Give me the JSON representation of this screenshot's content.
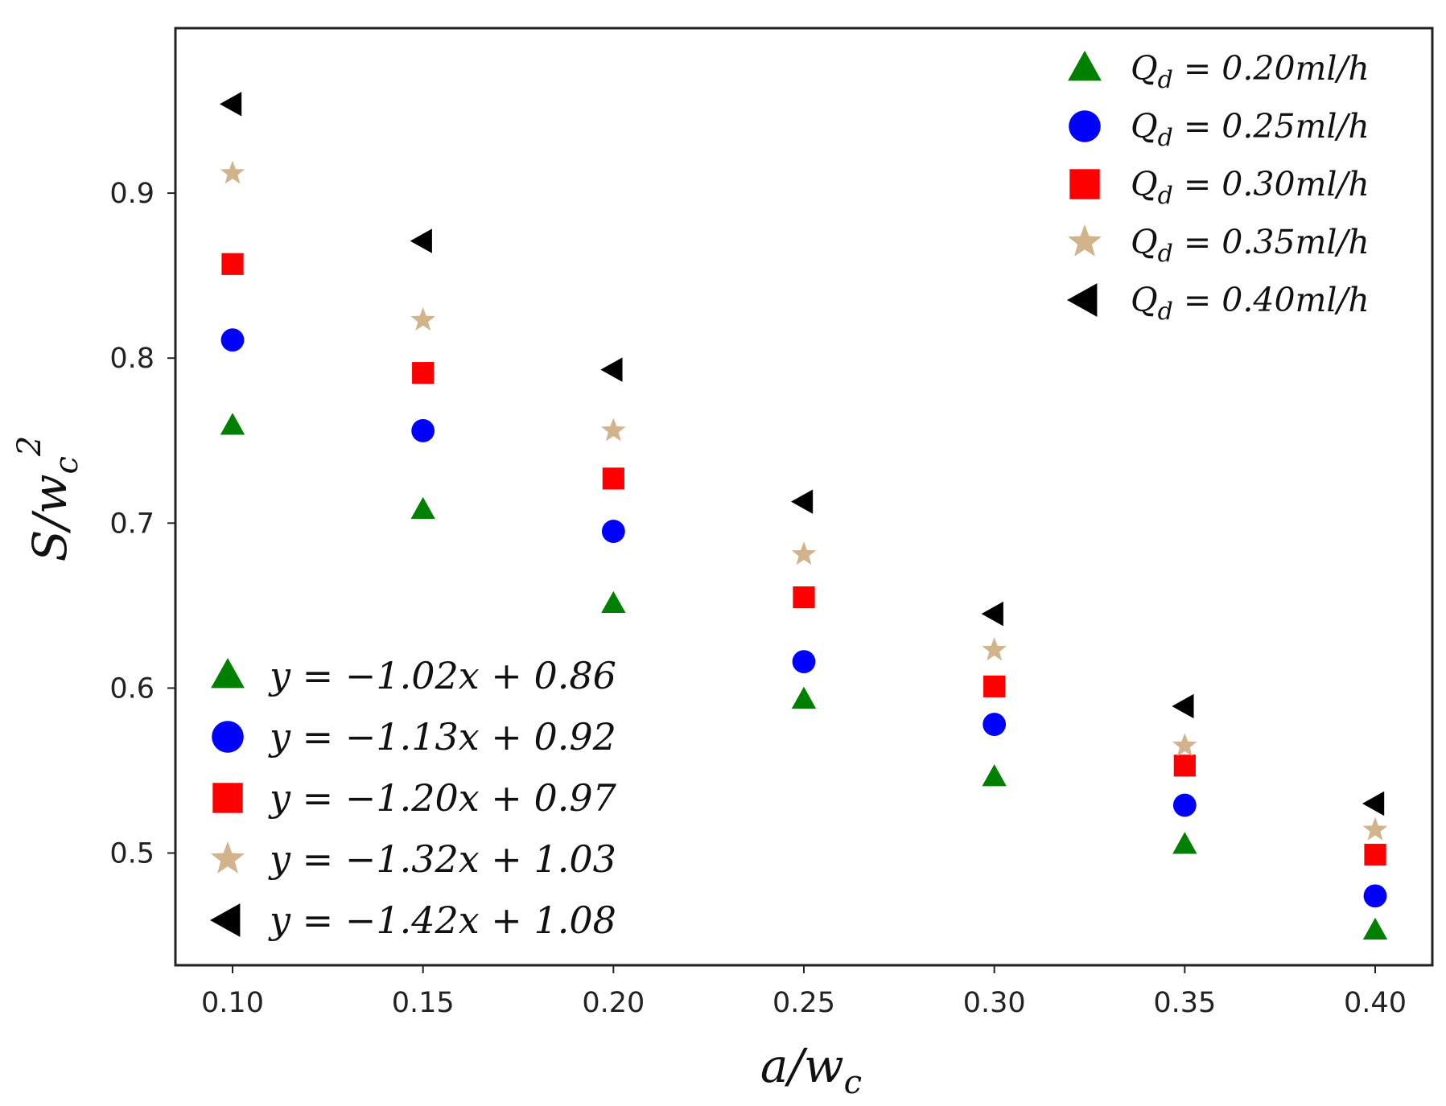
{
  "chart_data": {
    "type": "scatter",
    "title": "",
    "xlabel": "a/w_c",
    "xlabel_base": "a/w",
    "xlabel_sub": "c",
    "ylabel": "S/w_c^2",
    "ylabel_base": "S/w",
    "ylabel_sub": "c",
    "ylabel_sup": "2",
    "xlim": [
      0.085,
      0.415
    ],
    "ylim": [
      0.432,
      1.0
    ],
    "x_ticks": [
      0.1,
      0.15,
      0.2,
      0.25,
      0.3,
      0.35,
      0.4
    ],
    "x_tick_labels": [
      "0.10",
      "0.15",
      "0.20",
      "0.25",
      "0.30",
      "0.35",
      "0.40"
    ],
    "y_ticks": [
      0.5,
      0.6,
      0.7,
      0.8,
      0.9
    ],
    "y_tick_labels": [
      "0.5",
      "0.6",
      "0.7",
      "0.8",
      "0.9"
    ],
    "x": [
      0.1,
      0.15,
      0.2,
      0.25,
      0.3,
      0.35,
      0.4
    ],
    "series": [
      {
        "name": "Q_d = 0.20ml/h",
        "label_var": "Q",
        "label_sub": "d",
        "label_rest": " = 0.20ml/h",
        "marker": "triangle-up",
        "color": "#008000",
        "values": [
          0.759,
          0.708,
          0.651,
          0.593,
          0.546,
          0.505,
          0.453
        ],
        "fit": "y = −1.02x + 0.86"
      },
      {
        "name": "Q_d = 0.25ml/h",
        "label_var": "Q",
        "label_sub": "d",
        "label_rest": " = 0.25ml/h",
        "marker": "circle",
        "color": "#0000ff",
        "values": [
          0.811,
          0.756,
          0.695,
          0.616,
          0.578,
          0.529,
          0.474
        ],
        "fit": "y = −1.13x + 0.92"
      },
      {
        "name": "Q_d = 0.30ml/h",
        "label_var": "Q",
        "label_sub": "d",
        "label_rest": " = 0.30ml/h",
        "marker": "square",
        "color": "#ff0000",
        "values": [
          0.857,
          0.791,
          0.727,
          0.655,
          0.601,
          0.553,
          0.499
        ],
        "fit": "y = −1.20x + 0.97"
      },
      {
        "name": "Q_d = 0.35ml/h",
        "label_var": "Q",
        "label_sub": "d",
        "label_rest": " = 0.35ml/h",
        "marker": "star",
        "color": "#d2b48c",
        "values": [
          0.912,
          0.823,
          0.756,
          0.681,
          0.623,
          0.565,
          0.514
        ],
        "fit": "y = −1.32x + 1.03"
      },
      {
        "name": "Q_d = 0.40ml/h",
        "label_var": "Q",
        "label_sub": "d",
        "label_rest": " = 0.40ml/h",
        "marker": "triangle-left",
        "color": "#000000",
        "values": [
          0.954,
          0.871,
          0.793,
          0.713,
          0.645,
          0.589,
          0.53
        ],
        "fit": "y = −1.42x + 1.08"
      }
    ],
    "legend_position": "upper-right",
    "fit_legend_position": "lower-left",
    "grid": false
  }
}
